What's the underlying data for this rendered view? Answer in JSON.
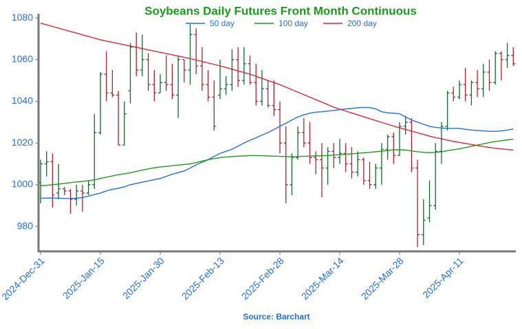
{
  "chart_data": {
    "type": "ohlc",
    "title": "Soybeans Daily Futures Front Month Continuous",
    "source": "Source: Barchart",
    "categories": [
      "2024-Dec-31",
      null,
      null,
      null,
      null,
      null,
      null,
      null,
      null,
      null,
      "2025-Jan-15",
      null,
      null,
      null,
      null,
      null,
      null,
      null,
      null,
      null,
      "2025-Jan-30",
      null,
      null,
      null,
      null,
      null,
      null,
      null,
      null,
      null,
      "2025-Feb-13",
      null,
      null,
      null,
      null,
      null,
      null,
      null,
      null,
      null,
      "2025-Feb-28",
      null,
      null,
      null,
      null,
      null,
      null,
      null,
      null,
      null,
      "2025-Mar-14",
      null,
      null,
      null,
      null,
      null,
      null,
      null,
      null,
      null,
      "2025-Mar-28",
      null,
      null,
      null,
      null,
      null,
      null,
      null,
      null,
      null,
      "2025-Apr-11",
      null,
      null,
      null,
      null,
      null,
      null,
      null,
      null,
      null
    ],
    "open": [
      1001,
      1010,
      1011,
      996,
      998,
      997,
      993,
      997,
      996,
      1000,
      1025,
      1053,
      1044,
      1043,
      1019,
      1045,
      1066,
      1055,
      1060,
      1048,
      1044,
      1049,
      1048,
      1043,
      1060,
      1055,
      1072,
      1057,
      1048,
      1042,
      1043,
      1046,
      1048,
      1060,
      1050,
      1058,
      1049,
      1040,
      1046,
      1038,
      1036,
      1020,
      1000,
      1013,
      1025,
      1020,
      1013,
      1012,
      1008,
      1016,
      1013,
      1015,
      1010,
      1006,
      1012,
      1002,
      1000,
      1008,
      1017,
      1023,
      1014,
      1028,
      1030,
      1008,
      976,
      984,
      990,
      1016,
      1028,
      1044,
      1042,
      1048,
      1043,
      1049,
      1046,
      1054,
      1049,
      1063,
      1060,
      1062
    ],
    "high": [
      1012,
      1016,
      1015,
      1010,
      999,
      998,
      1000,
      1000,
      1002,
      1034,
      1054,
      1064,
      1055,
      1045,
      1040,
      1068,
      1073,
      1072,
      1063,
      1055,
      1053,
      1062,
      1058,
      1062,
      1060,
      1077,
      1075,
      1066,
      1055,
      1050,
      1060,
      1052,
      1065,
      1066,
      1066,
      1062,
      1058,
      1055,
      1050,
      1050,
      1040,
      1028,
      1015,
      1028,
      1032,
      1030,
      1016,
      1020,
      1018,
      1020,
      1022,
      1020,
      1018,
      1016,
      1013,
      1011,
      1010,
      1020,
      1024,
      1025,
      1030,
      1033,
      1032,
      1012,
      993,
      1002,
      1020,
      1030,
      1045,
      1047,
      1050,
      1056,
      1050,
      1055,
      1058,
      1060,
      1064,
      1064,
      1068,
      1066
    ],
    "low": [
      991,
      1004,
      989,
      993,
      995,
      986,
      990,
      987,
      995,
      998,
      1024,
      1040,
      1042,
      1019,
      1019,
      1039,
      1052,
      1052,
      1045,
      1040,
      1044,
      1045,
      1041,
      1032,
      1049,
      1048,
      1053,
      1045,
      1040,
      1026,
      1041,
      1043,
      1045,
      1047,
      1048,
      1048,
      1038,
      1038,
      1037,
      1033,
      1015,
      991,
      995,
      1012,
      1018,
      1010,
      1005,
      994,
      1000,
      1008,
      1010,
      1006,
      1003,
      1004,
      1000,
      998,
      998,
      1000,
      1012,
      1010,
      1014,
      1024,
      1006,
      970,
      971,
      982,
      988,
      1010,
      1026,
      1040,
      1041,
      1040,
      1038,
      1042,
      1042,
      1045,
      1048,
      1050,
      1056,
      1057
    ],
    "close": [
      1010,
      1011,
      995,
      998,
      997,
      993,
      997,
      996,
      1000,
      1025,
      1053,
      1044,
      1043,
      1019,
      1034,
      1066,
      1055,
      1060,
      1048,
      1044,
      1049,
      1048,
      1043,
      1060,
      1055,
      1072,
      1057,
      1048,
      1042,
      1028,
      1046,
      1048,
      1060,
      1050,
      1058,
      1049,
      1040,
      1046,
      1038,
      1036,
      1020,
      1000,
      1013,
      1025,
      1020,
      1013,
      1012,
      1008,
      1016,
      1013,
      1015,
      1010,
      1006,
      1012,
      1002,
      1000,
      1008,
      1017,
      1023,
      1014,
      1028,
      1030,
      1008,
      976,
      983,
      990,
      1016,
      1028,
      1044,
      1042,
      1048,
      1043,
      1049,
      1046,
      1054,
      1049,
      1063,
      1060,
      1062,
      1058
    ],
    "up_color": "#0b6b2b",
    "down_color": "#b01e2e",
    "series": [
      {
        "name": "50 day",
        "color": "#1f6fde",
        "values": [
          993.5,
          993.6,
          993.6,
          993.5,
          993.4,
          993.4,
          993.5,
          993.8,
          994.5,
          995.3,
          996,
          997,
          997.8,
          998.3,
          999,
          1000,
          1000.6,
          1001.2,
          1001.8,
          1002.4,
          1003,
          1004,
          1005,
          1005.8,
          1006.6,
          1008,
          1009.5,
          1010.8,
          1012,
          1013.6,
          1015,
          1016,
          1017,
          1018.5,
          1020,
          1021.3,
          1022.5,
          1023.8,
          1025,
          1026.5,
          1028,
          1029.5,
          1031,
          1032.5,
          1033.5,
          1034.3,
          1034.8,
          1035,
          1035.3,
          1035.6,
          1036,
          1036.3,
          1036.6,
          1036.9,
          1037.1,
          1037,
          1036.4,
          1035,
          1034.5,
          1034.3,
          1034,
          1032.5,
          1031,
          1030,
          1029,
          1028,
          1027.5,
          1027.2,
          1027,
          1027,
          1027,
          1026.6,
          1026.2,
          1026,
          1025.8,
          1025.6,
          1025.6,
          1025.8,
          1026.2,
          1026.7
        ]
      },
      {
        "name": "100 day",
        "color": "#1e9a1e",
        "values": [
          999.5,
          999.7,
          1000,
          1000.3,
          1000.6,
          1001,
          1001.3,
          1001.6,
          1001.9,
          1002.3,
          1003,
          1003.6,
          1004.2,
          1004.8,
          1005.2,
          1005.7,
          1006.4,
          1007,
          1007.6,
          1008.1,
          1008.5,
          1008.8,
          1009.1,
          1009.4,
          1009.7,
          1010,
          1010.6,
          1011.3,
          1012,
          1012.5,
          1013,
          1013.3,
          1013.5,
          1013.7,
          1013.8,
          1014,
          1014,
          1013.9,
          1013.8,
          1013.7,
          1013.6,
          1013.5,
          1013.4,
          1013.5,
          1013.6,
          1013.7,
          1013.8,
          1013.9,
          1014,
          1014.2,
          1014.4,
          1014.6,
          1014.8,
          1015,
          1015.3,
          1015.5,
          1015.8,
          1016.1,
          1016.4,
          1016.7,
          1016.8,
          1016.6,
          1016.2,
          1015.8,
          1015.5,
          1015.4,
          1015.5,
          1015.8,
          1016.3,
          1016.8,
          1017.2,
          1017.8,
          1018.4,
          1019,
          1019.6,
          1020.2,
          1020.7,
          1021.1,
          1021.5,
          1021.8
        ]
      },
      {
        "name": "200 day",
        "color": "#d42a3a",
        "values": [
          1077.5,
          1076.7,
          1075.9,
          1075.1,
          1074.3,
          1073.5,
          1072.7,
          1071.9,
          1071.1,
          1070.3,
          1069.5,
          1068.9,
          1068.3,
          1067.7,
          1067.1,
          1066.5,
          1065.9,
          1065.3,
          1064.7,
          1064.1,
          1063.5,
          1062.9,
          1062.3,
          1061.7,
          1061.1,
          1060.5,
          1059.8,
          1059.1,
          1058.4,
          1057.7,
          1057,
          1056.2,
          1055.4,
          1054.6,
          1053.8,
          1053,
          1052,
          1051,
          1050,
          1049,
          1048,
          1046.8,
          1045.6,
          1044.4,
          1043.2,
          1042,
          1040.8,
          1039.6,
          1038.4,
          1037.2,
          1036.2,
          1035.3,
          1034.4,
          1033.5,
          1032.6,
          1031.7,
          1030.8,
          1029.9,
          1029,
          1028.1,
          1027.3,
          1026.5,
          1025.7,
          1024.9,
          1024.1,
          1023.3,
          1022.6,
          1022,
          1021.4,
          1020.8,
          1020.3,
          1019.8,
          1019.3,
          1018.8,
          1018.3,
          1017.9,
          1017.5,
          1017.2,
          1016.9,
          1016.7
        ]
      }
    ],
    "ylim": [
      968,
      1082
    ],
    "yticks": [
      980,
      1000,
      1020,
      1040,
      1060,
      1080
    ]
  }
}
